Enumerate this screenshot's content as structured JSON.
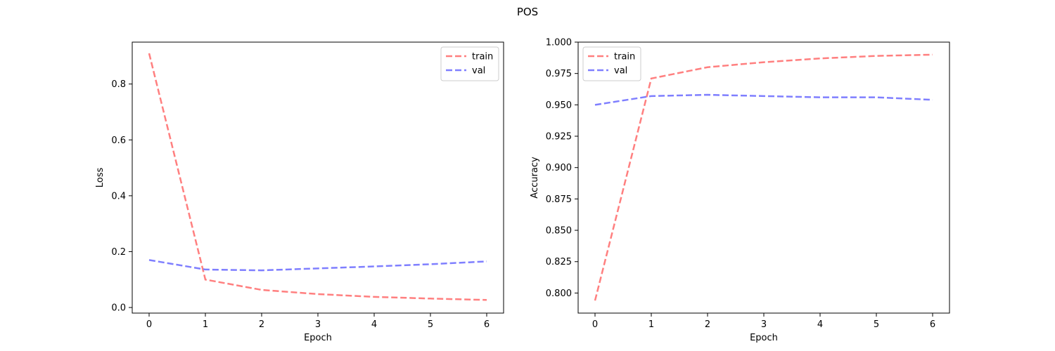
{
  "suptitle": "POS",
  "chart_data": [
    {
      "type": "line",
      "title": "",
      "xlabel": "Epoch",
      "ylabel": "Loss",
      "x": [
        0,
        1,
        2,
        3,
        4,
        5,
        6
      ],
      "xlim": [
        -0.3,
        6.3
      ],
      "ylim": [
        -0.02,
        0.95
      ],
      "xticks": [
        0,
        1,
        2,
        3,
        4,
        5,
        6
      ],
      "yticks": [
        0.0,
        0.2,
        0.4,
        0.6,
        0.8
      ],
      "ytick_labels": [
        "0.0",
        "0.2",
        "0.4",
        "0.6",
        "0.8"
      ],
      "grid": false,
      "legend_loc": "upper right",
      "series": [
        {
          "name": "train",
          "color": "#ff7f7f",
          "style": "dashed",
          "values": [
            0.91,
            0.1,
            0.063,
            0.048,
            0.038,
            0.032,
            0.027
          ]
        },
        {
          "name": "val",
          "color": "#7f7fff",
          "style": "dashed",
          "values": [
            0.17,
            0.136,
            0.133,
            0.14,
            0.147,
            0.155,
            0.165
          ]
        }
      ]
    },
    {
      "type": "line",
      "title": "",
      "xlabel": "Epoch",
      "ylabel": "Accuracy",
      "x": [
        0,
        1,
        2,
        3,
        4,
        5,
        6
      ],
      "xlim": [
        -0.3,
        6.3
      ],
      "ylim": [
        0.784,
        1.0
      ],
      "xticks": [
        0,
        1,
        2,
        3,
        4,
        5,
        6
      ],
      "yticks": [
        0.8,
        0.825,
        0.85,
        0.875,
        0.9,
        0.925,
        0.95,
        0.975,
        1.0
      ],
      "ytick_labels": [
        "0.800",
        "0.825",
        "0.850",
        "0.875",
        "0.900",
        "0.925",
        "0.950",
        "0.975",
        "1.000"
      ],
      "grid": false,
      "legend_loc": "upper left",
      "series": [
        {
          "name": "train",
          "color": "#ff7f7f",
          "style": "dashed",
          "values": [
            0.794,
            0.971,
            0.98,
            0.984,
            0.987,
            0.989,
            0.99
          ]
        },
        {
          "name": "val",
          "color": "#7f7fff",
          "style": "dashed",
          "values": [
            0.95,
            0.957,
            0.958,
            0.957,
            0.956,
            0.956,
            0.954
          ]
        }
      ]
    }
  ]
}
